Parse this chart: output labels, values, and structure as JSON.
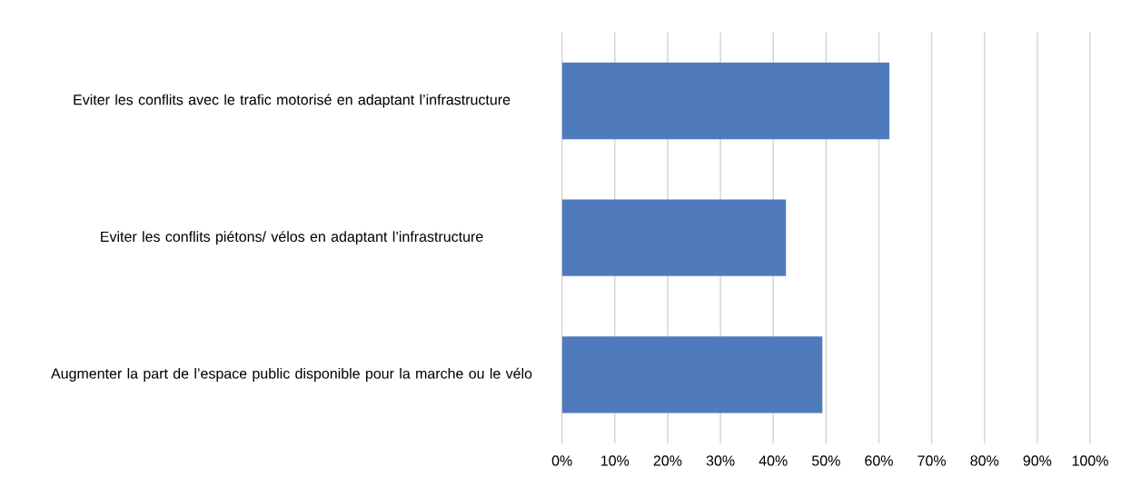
{
  "chart_data": {
    "type": "bar",
    "orientation": "horizontal",
    "categories": [
      "Eviter les conflits avec le trafic motorisé en adaptant l’infrastructure",
      "Eviter les conflits piétons/ vélos en adaptant l’infrastructure",
      "Augmenter la part de l’espace public disponible pour la marche ou le vélo"
    ],
    "values": [
      62,
      42.4,
      49.3
    ],
    "color": "#4f7bbd",
    "xlim": [
      0,
      100
    ],
    "xticks": [
      {
        "value": 0,
        "label": "0%"
      },
      {
        "value": 10,
        "label": "10%"
      },
      {
        "value": 20,
        "label": "20%"
      },
      {
        "value": 30,
        "label": "30%"
      },
      {
        "value": 40,
        "label": "40%"
      },
      {
        "value": 50,
        "label": "50%"
      },
      {
        "value": 60,
        "label": "60%"
      },
      {
        "value": 70,
        "label": "70%"
      },
      {
        "value": 80,
        "label": "80%"
      },
      {
        "value": 90,
        "label": "90%"
      },
      {
        "value": 100,
        "label": "100%"
      }
    ],
    "grid": "x"
  }
}
